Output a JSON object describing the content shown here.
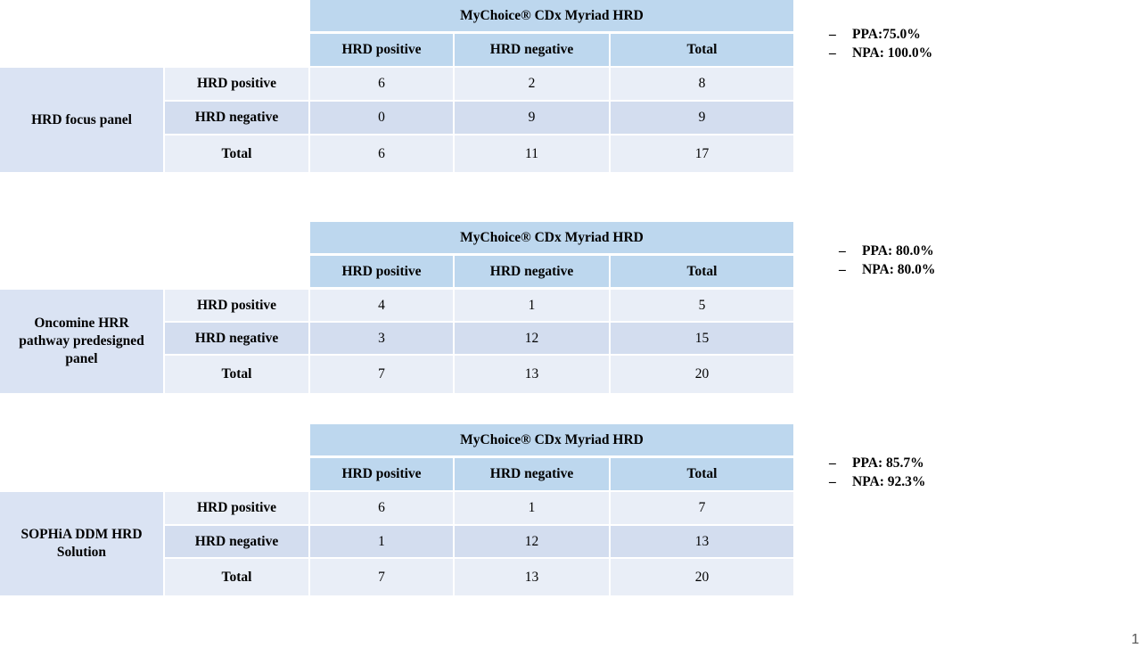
{
  "tables": [
    {
      "header_group": "MyChoice® CDx Myriad HRD",
      "columns": [
        "HRD positive",
        "HRD negative",
        "Total"
      ],
      "panel_name": "HRD focus panel",
      "rows": [
        {
          "label": "HRD positive",
          "values": [
            "6",
            "2",
            "8"
          ]
        },
        {
          "label": "HRD negative",
          "values": [
            "0",
            "9",
            "9"
          ]
        },
        {
          "label": "Total",
          "values": [
            "6",
            "11",
            "17"
          ]
        }
      ],
      "metrics": [
        {
          "dash": "–",
          "text": "PPA:75.0%"
        },
        {
          "dash": "–",
          "text": "NPA: 100.0%"
        }
      ]
    },
    {
      "header_group": "MyChoice® CDx Myriad HRD",
      "columns": [
        "HRD positive",
        "HRD negative",
        "Total"
      ],
      "panel_name": "Oncomine HRR pathway predesigned panel",
      "rows": [
        {
          "label": "HRD positive",
          "values": [
            "4",
            "1",
            "5"
          ]
        },
        {
          "label": "HRD negative",
          "values": [
            "3",
            "12",
            "15"
          ]
        },
        {
          "label": "Total",
          "values": [
            "7",
            "13",
            "20"
          ]
        }
      ],
      "metrics": [
        {
          "dash": "–",
          "text": "PPA: 80.0%"
        },
        {
          "dash": "–",
          "text": "NPA: 80.0%"
        }
      ]
    },
    {
      "header_group": "MyChoice® CDx Myriad HRD",
      "columns": [
        "HRD positive",
        "HRD negative",
        "Total"
      ],
      "panel_name": "SOPHiA DDM HRD Solution",
      "rows": [
        {
          "label": "HRD positive",
          "values": [
            "6",
            "1",
            "7"
          ]
        },
        {
          "label": "HRD negative",
          "values": [
            "1",
            "12",
            "13"
          ]
        },
        {
          "label": "Total",
          "values": [
            "7",
            "13",
            "20"
          ]
        }
      ],
      "metrics": [
        {
          "dash": "–",
          "text": "PPA: 85.7%"
        },
        {
          "dash": "–",
          "text": "NPA: 92.3%"
        }
      ]
    }
  ],
  "slide_number": "1"
}
